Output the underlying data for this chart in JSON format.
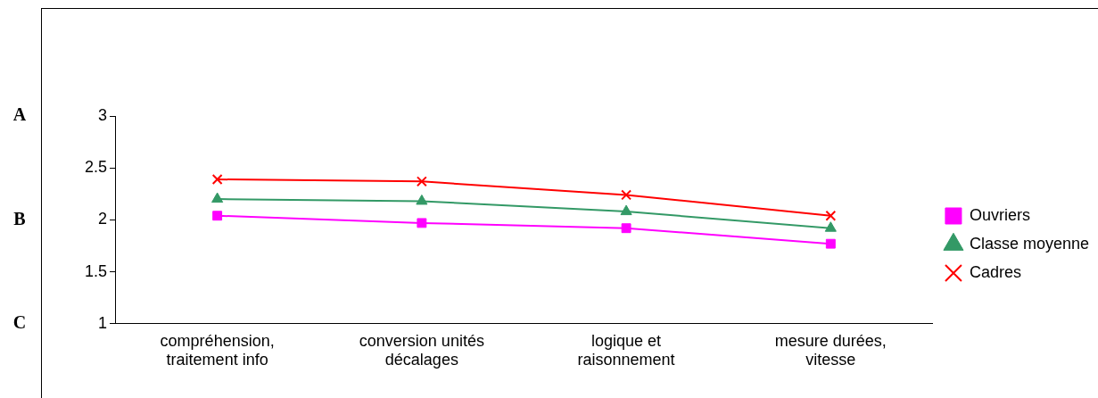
{
  "chart_data": {
    "type": "line",
    "categories": [
      "compréhension, traitement info",
      "conversion unités décalages",
      "logique et raisonnement",
      "mesure durées, vitesse"
    ],
    "series": [
      {
        "name": "Ouvriers",
        "color": "#ff00ff",
        "marker": "square",
        "values": [
          2.04,
          1.97,
          1.92,
          1.77
        ]
      },
      {
        "name": "Classe moyenne",
        "color": "#339966",
        "marker": "triangle",
        "values": [
          2.2,
          2.18,
          2.08,
          1.92
        ]
      },
      {
        "name": "Cadres",
        "color": "#ff0000",
        "marker": "cross",
        "values": [
          2.39,
          2.37,
          2.24,
          2.04
        ]
      }
    ],
    "ylim": [
      1,
      3
    ],
    "yticks": [
      1,
      1.5,
      2,
      2.5,
      3
    ],
    "grid": false,
    "legend": "right",
    "line_style": "solid",
    "annotations": [
      "A",
      "B",
      "C"
    ]
  }
}
